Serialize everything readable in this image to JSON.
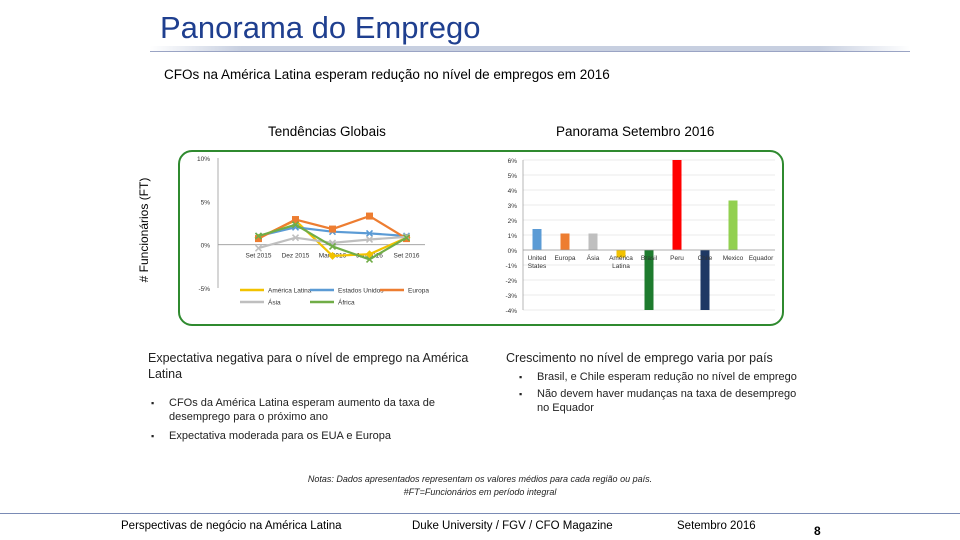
{
  "page": {
    "title": "Panorama do Emprego",
    "subtitle": "CFOs na América Latina esperam redução no nível de empregos em 2016",
    "y_axis_label": "# Funcionários (FT)",
    "notes": [
      "Notas: Dados apresentados representam os valores médios para cada região ou país.",
      "#FT=Funcionários em período integral"
    ],
    "footer": {
      "left": "Perspectivas de negócio na América Latina",
      "center": "Duke University / FGV / CFO Magazine",
      "right": "Setembro 2016",
      "page_number": "8"
    }
  },
  "chart_data": [
    {
      "type": "line",
      "title": "Tendências Globais",
      "x": [
        "Set 2015",
        "Dez 2015",
        "Mar 2016",
        "Jun 2016",
        "Set 2016"
      ],
      "ylim": [
        -5,
        10
      ],
      "y_ticks": [
        "10%",
        "5%",
        "0%",
        "-5%"
      ],
      "tick_values": [
        10,
        5,
        0,
        -5
      ],
      "legend_position": "bottom",
      "series": [
        {
          "name": "América Latina",
          "color": "#f2c200",
          "marker": "diamond",
          "values": [
            0.8,
            2.8,
            -1.3,
            -1.1,
            0.8
          ]
        },
        {
          "name": "Estados Unidos",
          "color": "#5b9bd5",
          "marker": "x",
          "values": [
            1.0,
            2.0,
            1.5,
            1.3,
            1.0
          ]
        },
        {
          "name": "Europa",
          "color": "#ed7d31",
          "marker": "square",
          "values": [
            0.7,
            2.9,
            1.8,
            3.3,
            0.7
          ]
        },
        {
          "name": "Ásia",
          "color": "#bfbfbf",
          "marker": "x",
          "values": [
            -0.4,
            0.8,
            0.2,
            0.6,
            0.9
          ]
        },
        {
          "name": "África",
          "color": "#70ad47",
          "marker": "x",
          "values": [
            1.0,
            2.3,
            -0.2,
            -1.7,
            0.8
          ]
        }
      ]
    },
    {
      "type": "bar",
      "title": "Panorama Setembro 2016",
      "categories": [
        "United States",
        "Europa",
        "Ásia",
        "América Latina",
        "Brasil",
        "Peru",
        "Chile",
        "Mexico",
        "Equador"
      ],
      "category_lines": [
        [
          "United",
          "States"
        ],
        [
          "Europa"
        ],
        [
          "Ásia"
        ],
        [
          "América",
          "Latina"
        ],
        [
          "Brasil"
        ],
        [
          "Peru"
        ],
        [
          "Chile"
        ],
        [
          "Mexico"
        ],
        [
          "Equador"
        ]
      ],
      "values": [
        1.4,
        1.1,
        1.1,
        -0.5,
        -4.0,
        6.0,
        -4.0,
        3.3,
        0.0
      ],
      "colors": [
        "#5b9bd5",
        "#ed7d31",
        "#bfbfbf",
        "#f2c200",
        "#1e7b2e",
        "#ff0000",
        "#1f3864",
        "#92d050",
        "#9dc3e6"
      ],
      "ylim": [
        -4,
        6
      ],
      "y_ticks": [
        "6%",
        "5%",
        "4%",
        "3%",
        "2%",
        "1%",
        "0%",
        "-1%",
        "-2%",
        "-3%",
        "-4%"
      ],
      "tick_values": [
        6,
        5,
        4,
        3,
        2,
        1,
        0,
        -1,
        -2,
        -3,
        -4
      ],
      "grid": true
    }
  ],
  "left_block": {
    "title": "Expectativa negativa para o nível de emprego na América Latina",
    "bullet_icon": "square-bullet-icon",
    "bullet_symbol": "▪",
    "bullets": [
      "CFOs da América Latina esperam aumento da taxa de desemprego para o próximo ano",
      "Expectativa moderada para os EUA e Europa"
    ]
  },
  "right_block": {
    "title": "Crescimento no nível de emprego varia por país",
    "bullet_icon": "square-bullet-icon",
    "bullet_symbol": "▪",
    "bullets": [
      "Brasil, e Chile esperam redução no nível de emprego",
      "Não devem haver mudanças na taxa de desemprego no Equador"
    ]
  }
}
